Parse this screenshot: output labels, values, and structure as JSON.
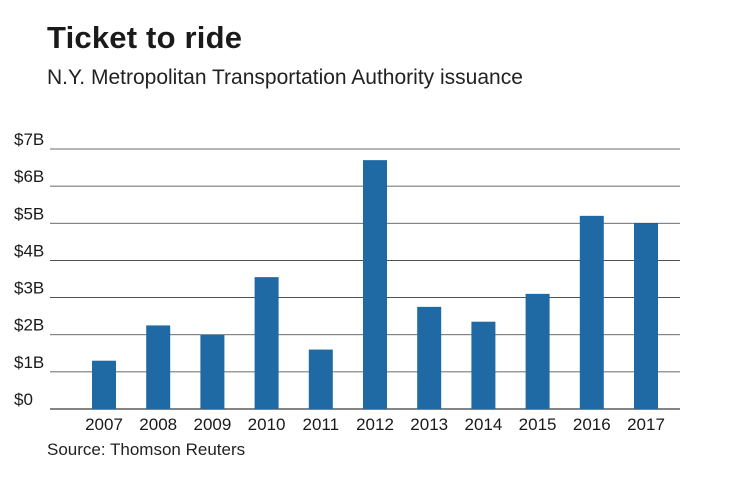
{
  "header": {
    "title": "Ticket to ride",
    "subtitle": "N.Y. Metropolitan Transportation Authority issuance"
  },
  "footer": {
    "source": "Source: Thomson Reuters"
  },
  "colors": {
    "bar": "#1f6aa5",
    "grid": "#3a3a3a",
    "text": "#1a1a1a"
  },
  "chart_data": {
    "type": "bar",
    "categories": [
      "2007",
      "2008",
      "2009",
      "2010",
      "2011",
      "2012",
      "2013",
      "2014",
      "2015",
      "2016",
      "2017"
    ],
    "values": [
      1.3,
      2.25,
      2.0,
      3.55,
      1.6,
      6.7,
      2.75,
      2.35,
      3.1,
      5.2,
      5.0
    ],
    "ylim": [
      0,
      7
    ],
    "yticks": [
      0,
      1,
      2,
      3,
      4,
      5,
      6,
      7
    ],
    "ytick_labels": [
      "$0",
      "$1B",
      "$2B",
      "$3B",
      "$4B",
      "$5B",
      "$6B",
      "$7B"
    ],
    "grid": true,
    "legend": "none"
  }
}
